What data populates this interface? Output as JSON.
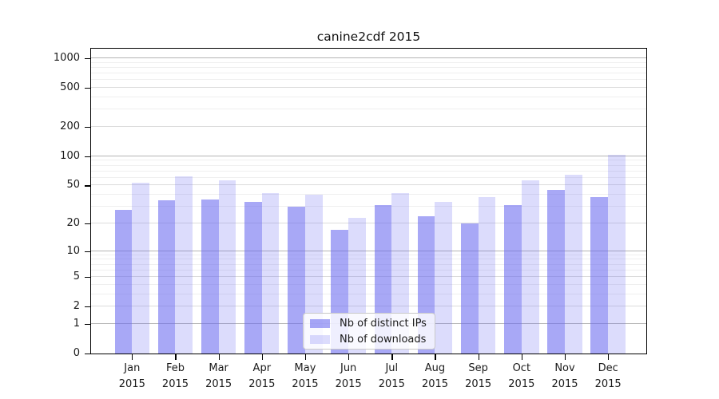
{
  "chart_data": {
    "type": "bar",
    "title": "canine2cdf 2015",
    "x_categories": [
      {
        "month": "Jan",
        "year": "2015"
      },
      {
        "month": "Feb",
        "year": "2015"
      },
      {
        "month": "Mar",
        "year": "2015"
      },
      {
        "month": "Apr",
        "year": "2015"
      },
      {
        "month": "May",
        "year": "2015"
      },
      {
        "month": "Jun",
        "year": "2015"
      },
      {
        "month": "Jul",
        "year": "2015"
      },
      {
        "month": "Aug",
        "year": "2015"
      },
      {
        "month": "Sep",
        "year": "2015"
      },
      {
        "month": "Oct",
        "year": "2015"
      },
      {
        "month": "Nov",
        "year": "2015"
      },
      {
        "month": "Dec",
        "year": "2015"
      }
    ],
    "series": [
      {
        "name": "Nb of distinct IPs",
        "color": "rgba(102,102,240,0.57)",
        "values": [
          28,
          35,
          36,
          34,
          30,
          17,
          31,
          24,
          20,
          31,
          45,
          38
        ]
      },
      {
        "name": "Nb of downloads",
        "color": "rgba(102,102,240,0.23)",
        "values": [
          53,
          62,
          57,
          42,
          40,
          23,
          42,
          34,
          38,
          57,
          65,
          103
        ]
      }
    ],
    "y_ticks": [
      0,
      1,
      2,
      5,
      10,
      20,
      50,
      100,
      200,
      500,
      1000
    ],
    "y_scale": "log10(1+v)",
    "ylim": [
      0,
      1290
    ],
    "grid": true,
    "legend_position": "lower center"
  },
  "colors": {
    "background": "#ffffff",
    "axis": "#000000",
    "major_grid": "#b4b4b4",
    "labeled_grid": "#dcdcdc",
    "minor_grid": "#efefef",
    "legend_border": "#c9c9c9",
    "bar_dark": "rgba(102,102,240,0.57)",
    "bar_light": "rgba(102,102,240,0.23)"
  }
}
